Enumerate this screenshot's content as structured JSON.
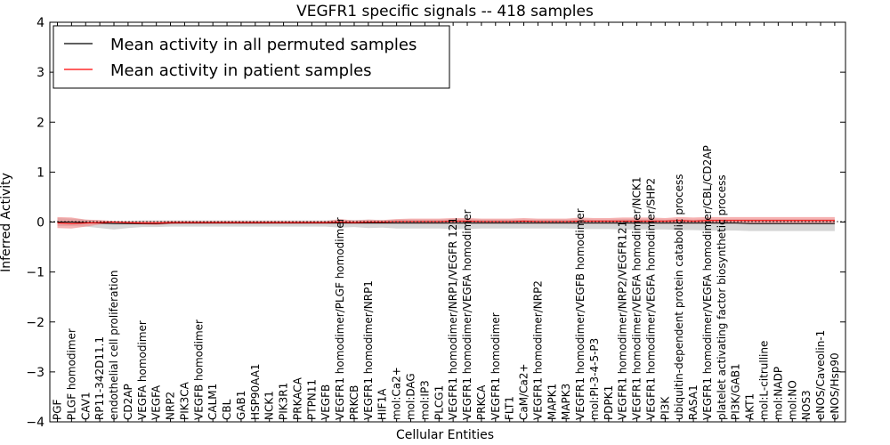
{
  "chart_data": {
    "type": "line",
    "title": "VEGFR1 specific signals -- 418 samples",
    "xlabel": "Cellular Entities",
    "ylabel": "Inferred Activity",
    "ylim": [
      -4,
      4
    ],
    "yticks": [
      4,
      3,
      2,
      1,
      0,
      -1,
      -2,
      -3,
      -4
    ],
    "ytick_labels": [
      "4",
      "3",
      "2",
      "1",
      "0",
      "−1",
      "−2",
      "−3",
      "−4"
    ],
    "grid": false,
    "legend_position": "top-left",
    "categories": [
      "PGF",
      "PLGF homodimer",
      "CAV1",
      "RP11-342D11.1",
      "endothelial cell proliferation",
      "CD2AP",
      "VEGFA homodimer",
      "VEGFA",
      "NRP2",
      "PIK3CA",
      "VEGFB homodimer",
      "CALM1",
      "CBL",
      "GAB1",
      "HSP90AA1",
      "NCK1",
      "PIK3R1",
      "PRKACA",
      "PTPN11",
      "VEGFB",
      "VEGFR1 homodimer/PLGF homodimer",
      "PRKCB",
      "VEGFR1 homodimer/NRP1",
      "HIF1A",
      "mol:Ca2+",
      "mol:DAG",
      "mol:IP3",
      "PLCG1",
      "VEGFR1 homodimer/NRP1/VEGFR 121",
      "VEGFR1 homodimer/VEGFA homodimer",
      "PRKCA",
      "VEGFR1 homodimer",
      "FLT1",
      "CaM/Ca2+",
      "VEGFR1 homodimer/NRP2",
      "MAPK1",
      "MAPK3",
      "VEGFR1 homodimer/VEGFB homodimer",
      "mol:PI-3-4-5-P3",
      "PDPK1",
      "VEGFR1 homodimer/NRP2/VEGFR121",
      "VEGFR1 homodimer/VEGFA homodimer/NCK1",
      "VEGFR1 homodimer/VEGFA homodimer/SHP2",
      "PI3K",
      "ubiquitin-dependent protein catabolic process",
      "RASA1",
      "VEGFR1 homodimer/VEGFA homodimer/CBL/CD2AP",
      "platelet activating factor biosynthetic process",
      "PI3K/GAB1",
      "AKT1",
      "mol:L-citrulline",
      "mol:NADP",
      "mol:NO",
      "NOS3",
      "eNOS/Caveolin-1",
      "eNOS/Hsp90"
    ],
    "series": [
      {
        "name": "Mean activity in all permuted samples",
        "color": "#000000",
        "band_color": "#c8c8c8",
        "values": [
          0,
          0,
          -0.01,
          -0.02,
          -0.03,
          -0.03,
          -0.03,
          -0.03,
          -0.02,
          -0.02,
          -0.02,
          -0.02,
          -0.02,
          -0.02,
          -0.02,
          -0.02,
          -0.02,
          -0.02,
          -0.02,
          -0.02,
          -0.02,
          -0.02,
          -0.02,
          -0.02,
          -0.02,
          -0.02,
          -0.02,
          -0.02,
          -0.02,
          -0.02,
          -0.02,
          -0.02,
          -0.02,
          -0.02,
          -0.02,
          -0.02,
          -0.02,
          -0.02,
          -0.02,
          -0.02,
          -0.02,
          -0.02,
          -0.02,
          -0.02,
          -0.02,
          -0.02,
          -0.02,
          -0.02,
          -0.02,
          -0.03,
          -0.03,
          -0.03,
          -0.03,
          -0.03,
          -0.03,
          -0.03
        ],
        "upper": [
          0.08,
          0.07,
          0.05,
          0.03,
          0.01,
          0.02,
          0.03,
          0.03,
          0.03,
          0.03,
          0.03,
          0.03,
          0.03,
          0.03,
          0.03,
          0.03,
          0.03,
          0.03,
          0.03,
          0.03,
          0.05,
          0.04,
          0.05,
          0.04,
          0.05,
          0.05,
          0.05,
          0.05,
          0.06,
          0.06,
          0.05,
          0.05,
          0.05,
          0.05,
          0.05,
          0.05,
          0.05,
          0.06,
          0.05,
          0.05,
          0.06,
          0.06,
          0.06,
          0.05,
          0.06,
          0.05,
          0.06,
          0.06,
          0.06,
          0.06,
          0.06,
          0.06,
          0.06,
          0.06,
          0.06,
          0.06
        ],
        "lower": [
          -0.08,
          -0.08,
          -0.09,
          -0.12,
          -0.15,
          -0.12,
          -0.1,
          -0.1,
          -0.09,
          -0.09,
          -0.09,
          -0.09,
          -0.09,
          -0.09,
          -0.09,
          -0.09,
          -0.09,
          -0.09,
          -0.09,
          -0.09,
          -0.11,
          -0.1,
          -0.12,
          -0.11,
          -0.13,
          -0.13,
          -0.13,
          -0.13,
          -0.14,
          -0.14,
          -0.13,
          -0.13,
          -0.13,
          -0.13,
          -0.13,
          -0.13,
          -0.13,
          -0.14,
          -0.14,
          -0.14,
          -0.15,
          -0.15,
          -0.15,
          -0.15,
          -0.16,
          -0.16,
          -0.17,
          -0.17,
          -0.17,
          -0.18,
          -0.18,
          -0.18,
          -0.18,
          -0.18,
          -0.18,
          -0.18
        ]
      },
      {
        "name": "Mean activity in patient samples",
        "color": "#ff0000",
        "band_color": "#f08080",
        "values": [
          -0.02,
          -0.03,
          -0.02,
          -0.01,
          0,
          -0.01,
          -0.02,
          -0.02,
          -0.01,
          -0.01,
          -0.01,
          -0.01,
          -0.01,
          -0.01,
          -0.01,
          -0.01,
          -0.01,
          -0.01,
          -0.01,
          -0.01,
          0,
          -0.01,
          0,
          0,
          0.01,
          0.01,
          0.01,
          0.01,
          0.02,
          0.02,
          0.01,
          0.01,
          0.01,
          0.02,
          0.01,
          0.01,
          0.01,
          0.02,
          0.02,
          0.02,
          0.02,
          0.02,
          0.02,
          0.02,
          0.03,
          0.02,
          0.03,
          0.03,
          0.03,
          0.03,
          0.03,
          0.03,
          0.03,
          0.03,
          0.03,
          0.03
        ],
        "upper": [
          0.1,
          0.09,
          0.05,
          0.04,
          0.02,
          0.01,
          0.02,
          0.02,
          0.02,
          0.02,
          0.02,
          0.02,
          0.02,
          0.02,
          0.02,
          0.02,
          0.02,
          0.02,
          0.02,
          0.02,
          0.06,
          0.03,
          0.05,
          0.04,
          0.06,
          0.07,
          0.07,
          0.07,
          0.08,
          0.08,
          0.07,
          0.07,
          0.07,
          0.08,
          0.07,
          0.07,
          0.07,
          0.09,
          0.08,
          0.08,
          0.09,
          0.09,
          0.09,
          0.08,
          0.1,
          0.09,
          0.1,
          0.1,
          0.1,
          0.1,
          0.1,
          0.1,
          0.1,
          0.1,
          0.1,
          0.1
        ],
        "lower": [
          -0.12,
          -0.13,
          -0.09,
          -0.05,
          -0.03,
          -0.04,
          -0.05,
          -0.06,
          -0.04,
          -0.03,
          -0.03,
          -0.03,
          -0.03,
          -0.03,
          -0.03,
          -0.03,
          -0.03,
          -0.03,
          -0.03,
          -0.03,
          -0.03,
          -0.03,
          -0.03,
          -0.03,
          -0.03,
          -0.03,
          -0.03,
          -0.03,
          -0.03,
          -0.03,
          -0.03,
          -0.03,
          -0.03,
          -0.03,
          -0.03,
          -0.03,
          -0.03,
          -0.03,
          -0.03,
          -0.03,
          -0.03,
          -0.03,
          -0.03,
          -0.03,
          -0.03,
          -0.03,
          -0.03,
          -0.03,
          -0.03,
          -0.03,
          -0.03,
          -0.03,
          -0.03,
          -0.03,
          -0.03,
          -0.03
        ]
      }
    ]
  }
}
